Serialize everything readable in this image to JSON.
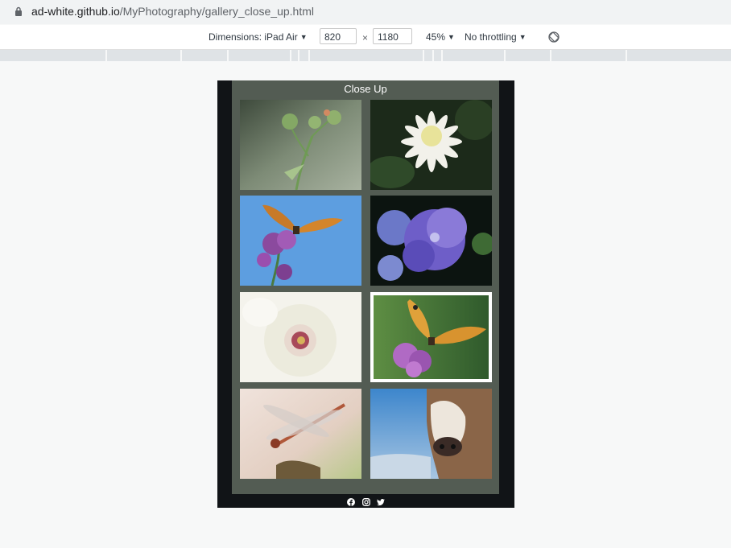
{
  "browser": {
    "url_host": "ad-white.github.io",
    "url_path": "/MyPhotography/gallery_close_up.html"
  },
  "devtools": {
    "dimensions_label": "Dimensions: iPad Air",
    "width": "820",
    "height": "1180",
    "zoom": "45%",
    "throttling": "No throttling"
  },
  "page": {
    "title": "Close Up",
    "photos": [
      {
        "subject": "thistle buds"
      },
      {
        "subject": "white dahlia"
      },
      {
        "subject": "butterfly on verbena"
      },
      {
        "subject": "purple hydrangea"
      },
      {
        "subject": "white hollyhock"
      },
      {
        "subject": "painted lady butterfly"
      },
      {
        "subject": "dragonfly"
      },
      {
        "subject": "cow"
      }
    ],
    "social_icons": [
      "facebook-icon",
      "instagram-icon",
      "twitter-icon"
    ]
  },
  "colors": {
    "device_bg": "#111417",
    "panel_bg": "#535c53"
  }
}
